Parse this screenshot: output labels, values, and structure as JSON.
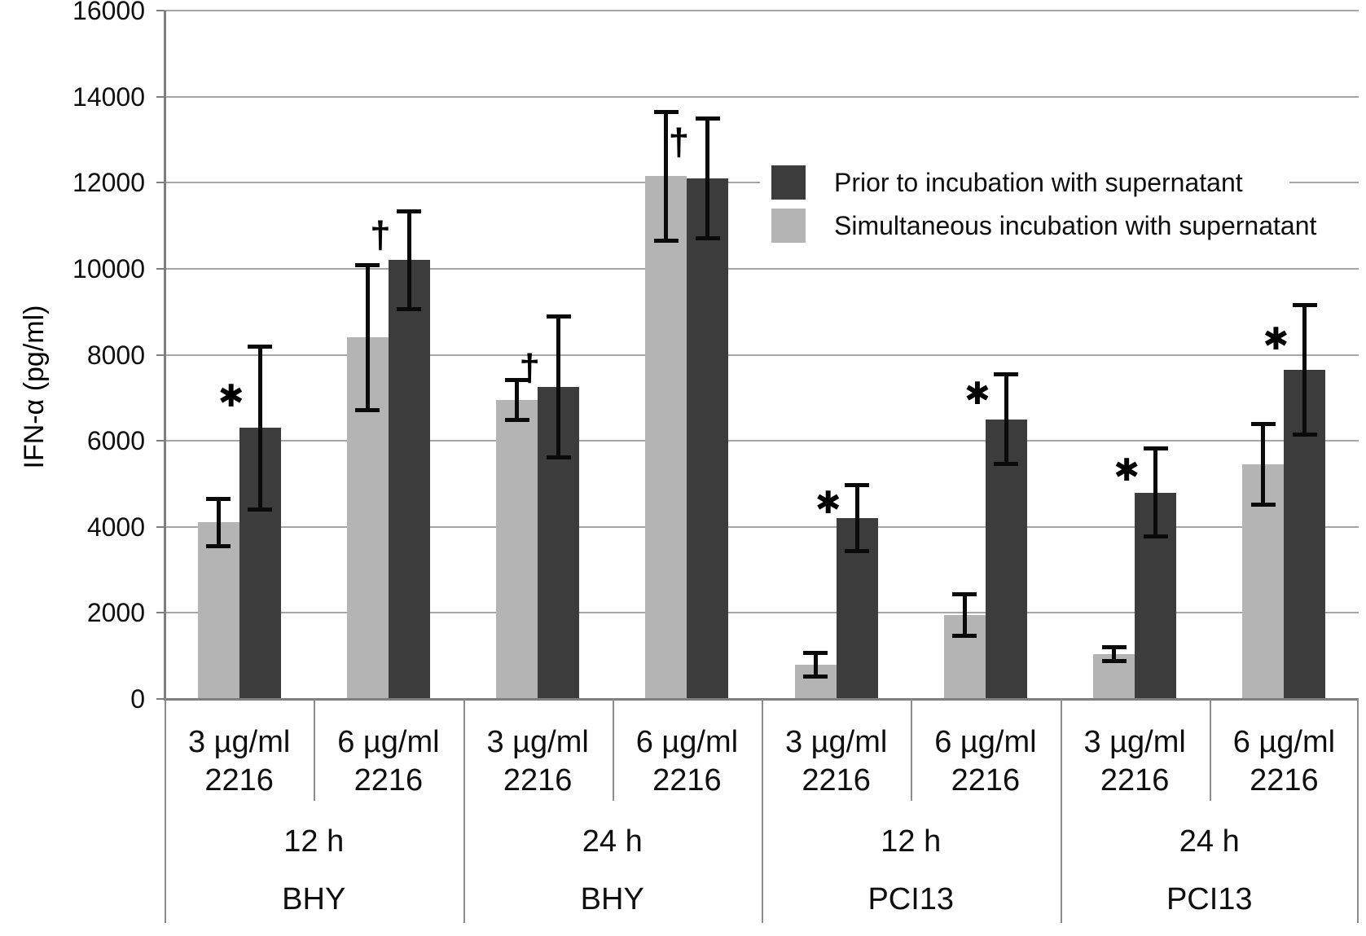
{
  "chart_data": {
    "type": "bar",
    "title": "",
    "ylabel": "IFN-α (pg/ml)",
    "ylim": [
      0,
      16000
    ],
    "y_ticks": [
      0,
      2000,
      4000,
      6000,
      8000,
      10000,
      12000,
      14000,
      16000
    ],
    "grid": true,
    "legend": {
      "position": "upper-right-inside",
      "entries": [
        {
          "label": "Prior to incubation with supernatant",
          "color": "#3c3c3c"
        },
        {
          "label": "Simultaneous incubation with supernatant",
          "color": "#b4b4b4"
        }
      ]
    },
    "series": [
      {
        "name": "Simultaneous incubation with supernatant",
        "color": "#b4b4b4",
        "values": [
          4100,
          8400,
          6950,
          12150,
          800,
          1950,
          1050,
          5450
        ],
        "errors": [
          550,
          1700,
          480,
          1500,
          280,
          500,
          170,
          950
        ]
      },
      {
        "name": "Prior to incubation with supernatant",
        "color": "#3c3c3c",
        "values": [
          6300,
          10200,
          7250,
          12100,
          4200,
          6500,
          4800,
          7650
        ],
        "errors": [
          1900,
          1150,
          1650,
          1400,
          780,
          1050,
          1030,
          1520
        ]
      }
    ],
    "groups": [
      {
        "time": "12 h",
        "cell_line": "BHY",
        "cells": [
          {
            "dose": "3 µg/ml",
            "odn": "2216",
            "simultaneous": 4100,
            "simultaneous_err": 550,
            "prior": 6300,
            "prior_err": 1900,
            "sig": "*",
            "sig_y": 7050
          },
          {
            "dose": "6 µg/ml",
            "odn": "2216",
            "simultaneous": 8400,
            "simultaneous_err": 1700,
            "prior": 10200,
            "prior_err": 1150,
            "sig": "†",
            "sig_y": 10800
          }
        ]
      },
      {
        "time": "24 h",
        "cell_line": "BHY",
        "cells": [
          {
            "dose": "3 µg/ml",
            "odn": "2216",
            "simultaneous": 6950,
            "simultaneous_err": 480,
            "prior": 7250,
            "prior_err": 1650,
            "sig": "†",
            "sig_y": 7700
          },
          {
            "dose": "6 µg/ml",
            "odn": "2216",
            "simultaneous": 12150,
            "simultaneous_err": 1500,
            "prior": 12100,
            "prior_err": 1400,
            "sig": "†",
            "sig_y": 12950
          }
        ]
      },
      {
        "time": "12 h",
        "cell_line": "PCI13",
        "cells": [
          {
            "dose": "3 µg/ml",
            "odn": "2216",
            "simultaneous": 800,
            "simultaneous_err": 280,
            "prior": 4200,
            "prior_err": 780,
            "sig": "*",
            "sig_y": 4570
          },
          {
            "dose": "6 µg/ml",
            "odn": "2216",
            "simultaneous": 1950,
            "simultaneous_err": 500,
            "prior": 6500,
            "prior_err": 1050,
            "sig": "*",
            "sig_y": 7100
          }
        ]
      },
      {
        "time": "24 h",
        "cell_line": "PCI13",
        "cells": [
          {
            "dose": "3 µg/ml",
            "odn": "2216",
            "simultaneous": 1050,
            "simultaneous_err": 170,
            "prior": 4800,
            "prior_err": 1030,
            "sig": "*",
            "sig_y": 5330
          },
          {
            "dose": "6 µg/ml",
            "odn": "2216",
            "simultaneous": 5450,
            "simultaneous_err": 950,
            "prior": 7650,
            "prior_err": 1520,
            "sig": "*",
            "sig_y": 8360
          }
        ]
      }
    ],
    "colors": {
      "prior": "#3c3c3c",
      "simultaneous": "#b4b4b4",
      "gridline": "#a6a6a6",
      "axis": "#7f7f7f",
      "table_line": "#8c8c8c",
      "error_bar": "#0a0a0a",
      "text": "#0f0f0f"
    }
  }
}
